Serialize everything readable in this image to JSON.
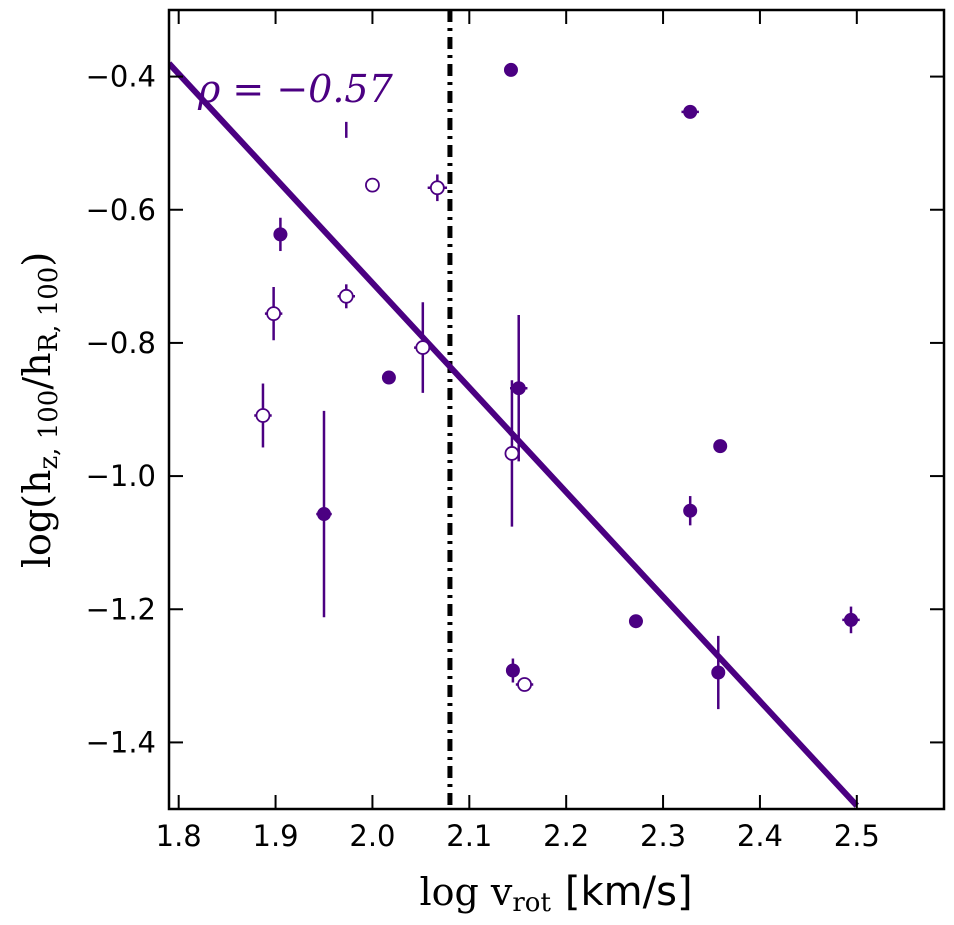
{
  "chart_data": {
    "type": "scatter",
    "xlabel_math": "log v",
    "xlabel_sub": "rot",
    "xlabel_unit": "[km/s]",
    "ylabel_math": "log(h",
    "ylabel_sub1": "z, 100",
    "ylabel_mid": "/h",
    "ylabel_sub2": "R, 100",
    "ylabel_close": ")",
    "xlim": [
      1.79,
      2.59
    ],
    "ylim": [
      -1.5,
      -0.3
    ],
    "xticks": [
      1.8,
      1.9,
      2.0,
      2.1,
      2.2,
      2.3,
      2.4,
      2.5
    ],
    "xtick_labels": [
      "1.8",
      "1.9",
      "2.0",
      "2.1",
      "2.2",
      "2.3",
      "2.4",
      "2.5"
    ],
    "yticks": [
      -0.4,
      -0.6,
      -0.8,
      -1.0,
      -1.2,
      -1.4
    ],
    "ytick_labels": [
      "−0.4",
      "−0.6",
      "−0.8",
      "−1.0",
      "−1.2",
      "−1.4"
    ],
    "color": "#4b0082",
    "annotation": "ρ = −0.57",
    "vline": {
      "x": 2.08,
      "style": "dash-dot",
      "color": "#000000"
    },
    "fit_line": {
      "slope": -1.57,
      "intercept": 2.43,
      "x_range": [
        1.79,
        2.5
      ]
    },
    "series": [
      {
        "name": "filled",
        "marker": "filled-circle",
        "points": [
          {
            "x": 2.143,
            "y": -0.39,
            "xerr": 0.005,
            "yerr": 0.005
          },
          {
            "x": 2.328,
            "y": -0.453,
            "xerr": 0.009,
            "yerr": 0.005
          },
          {
            "x": 1.905,
            "y": -0.637,
            "xerr": 0.007,
            "yerr": 0.025
          },
          {
            "x": 2.017,
            "y": -0.852,
            "xerr": 0.003,
            "yerr": 0.005
          },
          {
            "x": 2.151,
            "y": -0.868,
            "xerr": 0.009,
            "yerr": 0.11
          },
          {
            "x": 2.359,
            "y": -0.955,
            "xerr": 0.003,
            "yerr": 0.005
          },
          {
            "x": 1.95,
            "y": -1.057,
            "xerr": 0.008,
            "yerr": 0.155
          },
          {
            "x": 2.328,
            "y": -1.052,
            "xerr": 0.003,
            "yerr": 0.022
          },
          {
            "x": 2.272,
            "y": -1.218,
            "xerr": 0.007,
            "yerr": 0.005
          },
          {
            "x": 2.494,
            "y": -1.216,
            "xerr": 0.009,
            "yerr": 0.02
          },
          {
            "x": 2.145,
            "y": -1.292,
            "xerr": 0.006,
            "yerr": 0.018
          },
          {
            "x": 2.357,
            "y": -1.295,
            "xerr": 0.003,
            "yerr": 0.055
          }
        ]
      },
      {
        "name": "open",
        "marker": "open-circle",
        "points": [
          {
            "x": 2.0,
            "y": -0.563,
            "xerr": 0.005,
            "yerr": 0.005
          },
          {
            "x": 2.067,
            "y": -0.567,
            "xerr": 0.01,
            "yerr": 0.02
          },
          {
            "x": 1.973,
            "y": -0.73,
            "xerr": 0.009,
            "yerr": 0.018
          },
          {
            "x": 1.898,
            "y": -0.756,
            "xerr": 0.009,
            "yerr": 0.04
          },
          {
            "x": 2.052,
            "y": -0.807,
            "xerr": 0.009,
            "yerr": 0.068
          },
          {
            "x": 1.887,
            "y": -0.909,
            "xerr": 0.009,
            "yerr": 0.048
          },
          {
            "x": 2.144,
            "y": -0.966,
            "xerr": 0.003,
            "yerr": 0.11
          },
          {
            "x": 2.157,
            "y": -1.313,
            "xerr": 0.009,
            "yerr": 0.005
          }
        ]
      },
      {
        "name": "errorbar-only",
        "marker": "none",
        "points": [
          {
            "x": 1.973,
            "y": -0.48,
            "xerr": 0,
            "yerr": 0.012
          }
        ]
      }
    ]
  }
}
